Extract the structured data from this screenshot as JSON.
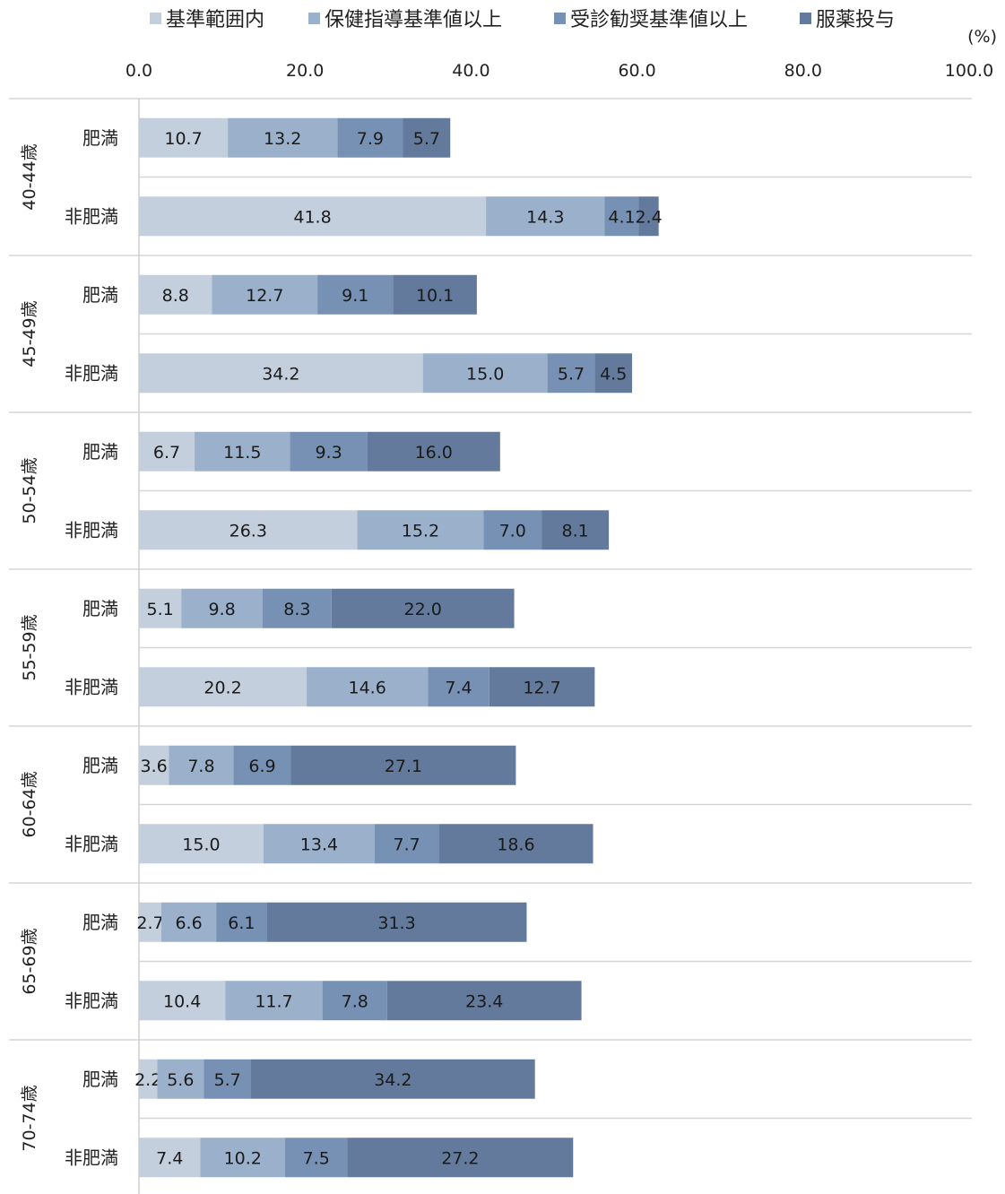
{
  "chart_data": {
    "type": "bar",
    "orientation": "horizontal",
    "stacked": true,
    "unit_label": "(%)",
    "xlim": [
      0,
      100
    ],
    "xticks": [
      "0.0",
      "20.0",
      "40.0",
      "60.0",
      "80.0",
      "100.0"
    ],
    "legend_position": "top",
    "grid": "horizontal separators",
    "series": [
      {
        "name": "基準範囲内",
        "color": "#c4cfde"
      },
      {
        "name": "保健指導基準値以上",
        "color": "#9bb0cb"
      },
      {
        "name": "受診勧奨基準値以上",
        "color": "#7791b4"
      },
      {
        "name": "服薬投与",
        "color": "#637a9c"
      }
    ],
    "groups": [
      {
        "age": "40-44歳",
        "rows": [
          {
            "label": "肥満",
            "values": [
              10.7,
              13.2,
              7.9,
              5.7
            ]
          },
          {
            "label": "非肥満",
            "values": [
              41.8,
              14.3,
              4.1,
              2.4
            ]
          }
        ]
      },
      {
        "age": "45-49歳",
        "rows": [
          {
            "label": "肥満",
            "values": [
              8.8,
              12.7,
              9.1,
              10.1
            ]
          },
          {
            "label": "非肥満",
            "values": [
              34.2,
              15.0,
              5.7,
              4.5
            ]
          }
        ]
      },
      {
        "age": "50-54歳",
        "rows": [
          {
            "label": "肥満",
            "values": [
              6.7,
              11.5,
              9.3,
              16.0
            ]
          },
          {
            "label": "非肥満",
            "values": [
              26.3,
              15.2,
              7.0,
              8.1
            ]
          }
        ]
      },
      {
        "age": "55-59歳",
        "rows": [
          {
            "label": "肥満",
            "values": [
              5.1,
              9.8,
              8.3,
              22.0
            ]
          },
          {
            "label": "非肥満",
            "values": [
              20.2,
              14.6,
              7.4,
              12.7
            ]
          }
        ]
      },
      {
        "age": "60-64歳",
        "rows": [
          {
            "label": "肥満",
            "values": [
              3.6,
              7.8,
              6.9,
              27.1
            ]
          },
          {
            "label": "非肥満",
            "values": [
              15.0,
              13.4,
              7.7,
              18.6
            ]
          }
        ]
      },
      {
        "age": "65-69歳",
        "rows": [
          {
            "label": "肥満",
            "values": [
              2.7,
              6.6,
              6.1,
              31.3
            ]
          },
          {
            "label": "非肥満",
            "values": [
              10.4,
              11.7,
              7.8,
              23.4
            ]
          }
        ]
      },
      {
        "age": "70-74歳",
        "rows": [
          {
            "label": "肥満",
            "values": [
              2.2,
              5.6,
              5.7,
              34.2
            ]
          },
          {
            "label": "非肥満",
            "values": [
              7.4,
              10.2,
              7.5,
              27.2
            ]
          }
        ]
      }
    ]
  }
}
